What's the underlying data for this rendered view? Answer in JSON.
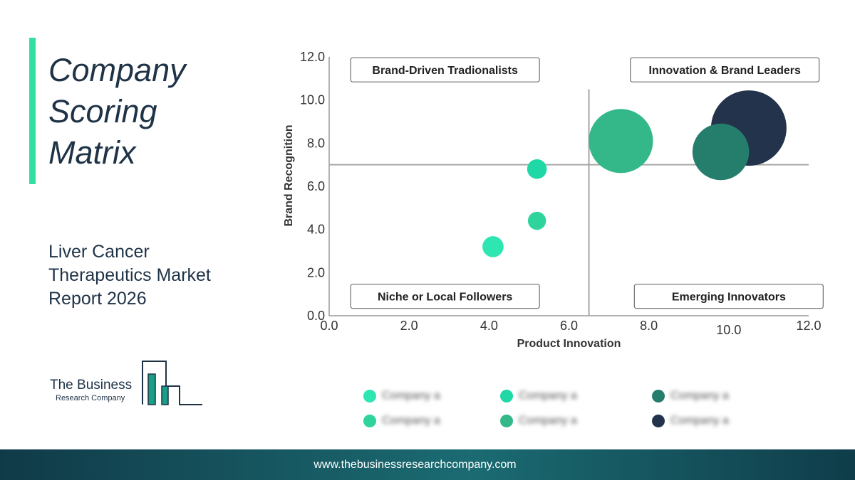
{
  "heading": {
    "title_lines": [
      "Company",
      "Scoring",
      "Matrix"
    ]
  },
  "report": {
    "lines": [
      "Liver Cancer",
      "Therapeutics Market",
      "Report 2026"
    ]
  },
  "logo": {
    "line1": "The Business",
    "line2": "Research Company"
  },
  "footer": {
    "url": "www.thebusinessresearchcompany.com"
  },
  "colors": {
    "accent": "#33e0a1",
    "navy": "#1f3347",
    "footer_start": "#103a48",
    "footer_mid": "#1b6b72"
  },
  "chart_data": {
    "type": "scatter",
    "title": "",
    "xlabel": "Product Innovation",
    "ylabel": "Brand Recognition",
    "xlim": [
      0,
      12
    ],
    "ylim": [
      0,
      12
    ],
    "x_ticks": [
      "0.0",
      "2.0",
      "4.0",
      "6.0",
      "8.0",
      "10.0",
      "12.0"
    ],
    "y_ticks": [
      "0.0",
      "2.0",
      "4.0",
      "6.0",
      "8.0",
      "10.0",
      "12.0"
    ],
    "divider": {
      "x": 6.5,
      "y": 7.0
    },
    "quadrants": [
      {
        "label": "Brand-Driven Tradionalists",
        "position": "top-left"
      },
      {
        "label": "Innovation & Brand Leaders",
        "position": "top-right"
      },
      {
        "label": "Niche or Local Followers",
        "position": "bottom-left"
      },
      {
        "label": "Emerging Innovators",
        "position": "bottom-right"
      }
    ],
    "points": [
      {
        "x": 10.5,
        "y": 8.7,
        "size": 10,
        "color": "#22334b"
      },
      {
        "x": 7.3,
        "y": 8.1,
        "size": 8.5,
        "color": "#34b889"
      },
      {
        "x": 9.8,
        "y": 7.6,
        "size": 7.5,
        "color": "#247e6b"
      },
      {
        "x": 5.2,
        "y": 6.8,
        "size": 2.6,
        "color": "#1fd8a6"
      },
      {
        "x": 5.2,
        "y": 4.4,
        "size": 2.4,
        "color": "#2ed49b"
      },
      {
        "x": 4.1,
        "y": 3.2,
        "size": 2.8,
        "color": "#2ee6b1"
      }
    ],
    "legend": {
      "placement": "bottom",
      "entries": [
        {
          "label": "Company a",
          "color": "#2ee6b1"
        },
        {
          "label": "Company a",
          "color": "#1fd8a6"
        },
        {
          "label": "Company a",
          "color": "#247e6b"
        },
        {
          "label": "Company a",
          "color": "#2ed49b"
        },
        {
          "label": "Company a",
          "color": "#34b889"
        },
        {
          "label": "Company a",
          "color": "#22334b"
        }
      ]
    }
  }
}
